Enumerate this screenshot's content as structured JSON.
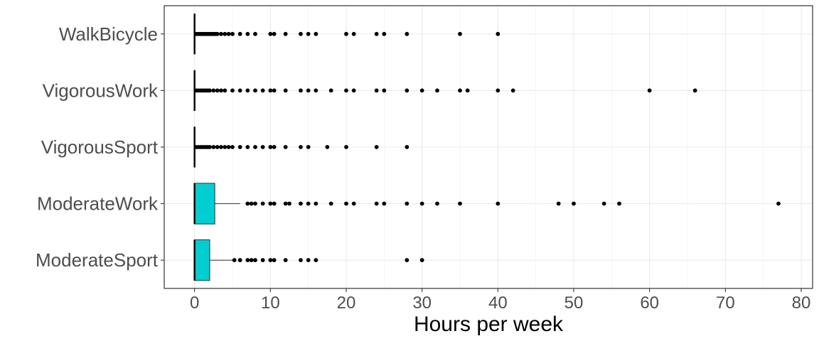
{
  "chart_data": {
    "type": "boxplot",
    "orientation": "horizontal",
    "title": "",
    "xlabel": "Hours per week",
    "ylabel": "",
    "xlim": [
      -4,
      81.5
    ],
    "xticks": [
      0,
      10,
      20,
      30,
      40,
      50,
      60,
      70,
      80
    ],
    "x_tick_labels": [
      "0",
      "10",
      "20",
      "30",
      "40",
      "50",
      "60",
      "70",
      "80"
    ],
    "grid": true,
    "legend": "none",
    "box_fill_color": "#00CED1",
    "outlier_color": "#000000",
    "categories": [
      "WalkBicycle",
      "VigorousWork",
      "VigorousSport",
      "ModerateWork",
      "ModerateSport"
    ],
    "boxes": [
      {
        "category": "WalkBicycle",
        "min": 0,
        "q1": 0,
        "median": 0,
        "q3": 0,
        "max": 0,
        "outliers": [
          0.25,
          0.5,
          0.75,
          1,
          1.25,
          1.5,
          1.75,
          2,
          2.25,
          2.5,
          2.75,
          3,
          3.5,
          4,
          4.5,
          5,
          6,
          7,
          8,
          10,
          10.5,
          12,
          14,
          15,
          16,
          20,
          21,
          24,
          25,
          28,
          35,
          40
        ]
      },
      {
        "category": "VigorousWork",
        "min": 0,
        "q1": 0,
        "median": 0,
        "q3": 0,
        "max": 0,
        "outliers": [
          0.25,
          0.5,
          0.75,
          1,
          1.25,
          1.5,
          1.75,
          2,
          2.5,
          3,
          3.5,
          4,
          5,
          6,
          7,
          8,
          9,
          10,
          10.5,
          12,
          14,
          15,
          16,
          18,
          20,
          21,
          24,
          25,
          28,
          30,
          32,
          35,
          36,
          40,
          42,
          60,
          66
        ]
      },
      {
        "category": "VigorousSport",
        "min": 0,
        "q1": 0,
        "median": 0,
        "q3": 0,
        "max": 0,
        "outliers": [
          0.25,
          0.5,
          0.75,
          1,
          1.25,
          1.5,
          1.75,
          2,
          2.5,
          3,
          3.5,
          4,
          4.5,
          5,
          6,
          7,
          8,
          9,
          10,
          10.5,
          12,
          14,
          15,
          17.5,
          20,
          24,
          28
        ]
      },
      {
        "category": "ModerateWork",
        "min": 0,
        "q1": 0,
        "median": 0,
        "q3": 2.67,
        "max": 6,
        "outliers": [
          7,
          7.5,
          8,
          9,
          10,
          10.5,
          12,
          12.5,
          14,
          15,
          16,
          18,
          20,
          21,
          24,
          25,
          28,
          30,
          32,
          35,
          40,
          48,
          50,
          54,
          56,
          77
        ]
      },
      {
        "category": "ModerateSport",
        "min": 0,
        "q1": 0,
        "median": 0,
        "q3": 2,
        "max": 5,
        "outliers": [
          5.25,
          6,
          7,
          7.5,
          8,
          9,
          10,
          10.5,
          12,
          14,
          15,
          16,
          28,
          30
        ]
      }
    ]
  }
}
